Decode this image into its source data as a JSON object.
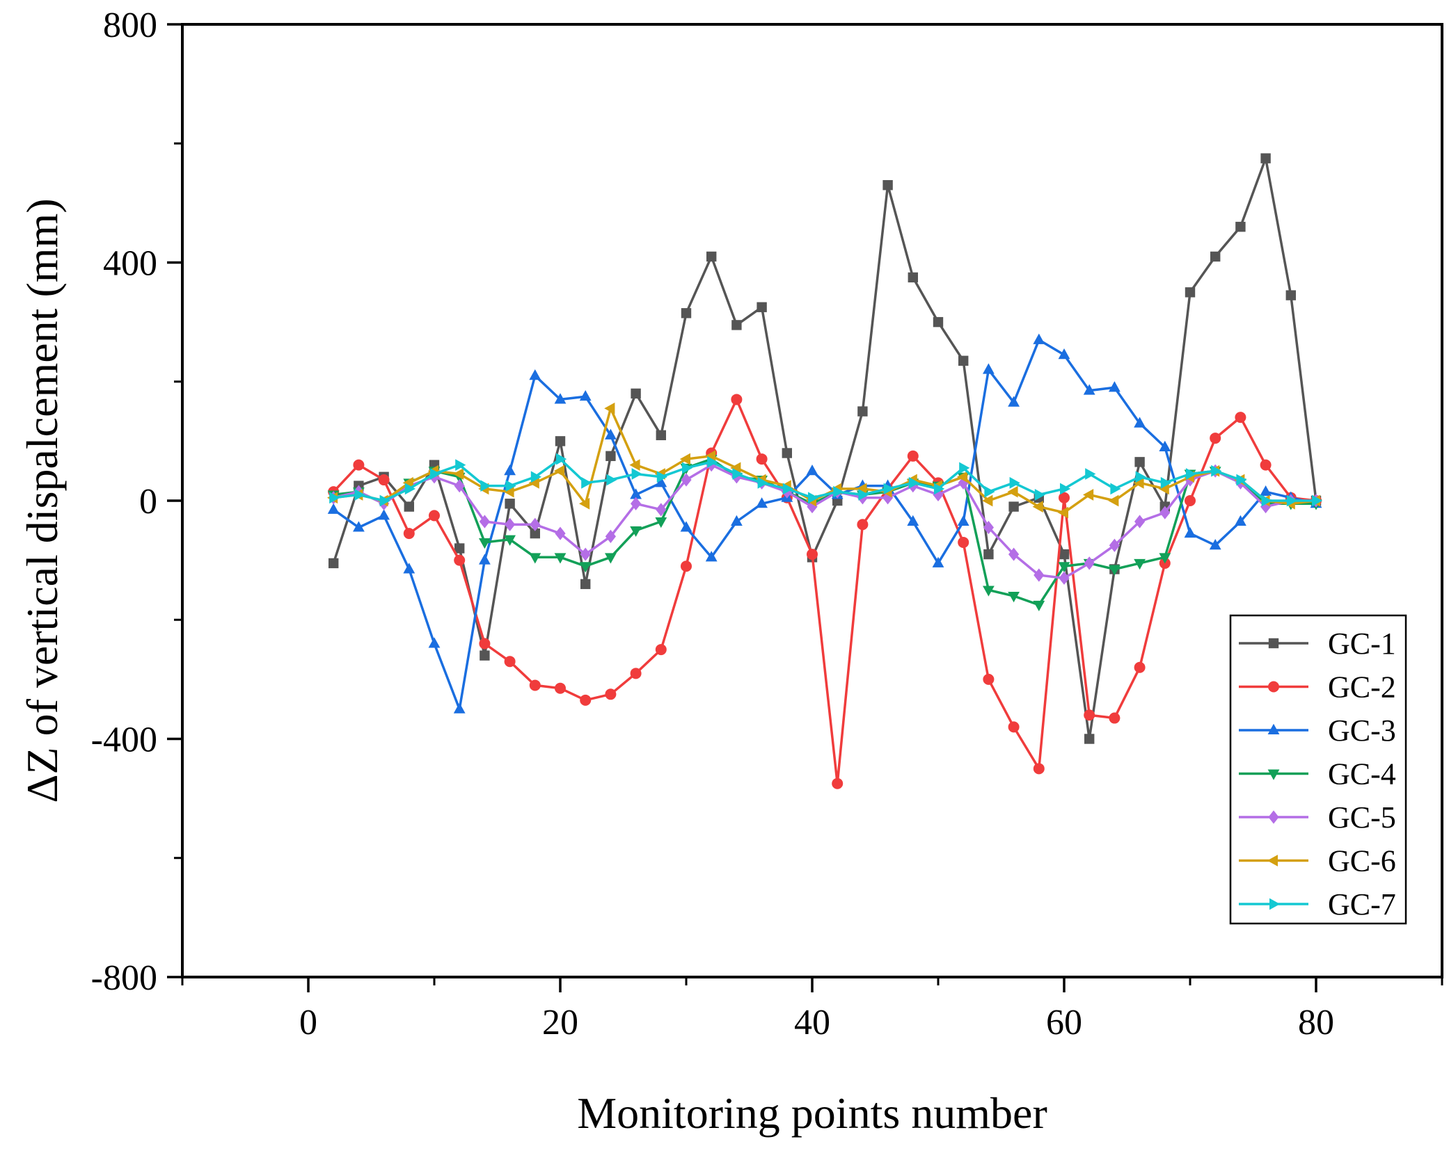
{
  "chart_data": {
    "type": "line",
    "title": "",
    "xlabel": "Monitoring points number",
    "ylabel": "ΔZ of vertical dispalcement (mm)",
    "xlim": [
      -10,
      90
    ],
    "ylim": [
      -800,
      800
    ],
    "xticks": [
      0,
      20,
      40,
      60,
      80
    ],
    "xtick_labels": [
      "0",
      "20",
      "40",
      "60",
      "80"
    ],
    "yticks": [
      -800,
      -400,
      0,
      400,
      800
    ],
    "ytick_labels": [
      "-800",
      "-400",
      "0",
      "400",
      "800"
    ],
    "legend_position": "bottom-right",
    "grid": false,
    "x": [
      2,
      4,
      6,
      8,
      10,
      12,
      14,
      16,
      18,
      20,
      22,
      24,
      26,
      28,
      30,
      32,
      34,
      36,
      38,
      40,
      42,
      44,
      46,
      48,
      50,
      52,
      54,
      56,
      58,
      60,
      62,
      64,
      66,
      68,
      70,
      72,
      74,
      76,
      78,
      80
    ],
    "series": [
      {
        "name": "GC-1",
        "color": "#555555",
        "marker": "square",
        "values": [
          -105,
          25,
          40,
          -10,
          60,
          -80,
          -260,
          -5,
          -55,
          100,
          -140,
          75,
          180,
          110,
          315,
          410,
          295,
          325,
          80,
          -95,
          0,
          150,
          530,
          375,
          300,
          235,
          -90,
          -10,
          5,
          -90,
          -400,
          -115,
          65,
          -10,
          350,
          410,
          460,
          575,
          345,
          0
        ]
      },
      {
        "name": "GC-2",
        "color": "#f03c3c",
        "marker": "circle",
        "values": [
          15,
          60,
          35,
          -55,
          -25,
          -100,
          -240,
          -270,
          -310,
          -315,
          -335,
          -325,
          -290,
          -250,
          -110,
          80,
          170,
          70,
          5,
          -90,
          -475,
          -40,
          20,
          75,
          30,
          -70,
          -300,
          -380,
          -450,
          5,
          -360,
          -365,
          -280,
          -105,
          0,
          105,
          140,
          60,
          5,
          0
        ]
      },
      {
        "name": "GC-3",
        "color": "#1a6ee0",
        "marker": "triangle-up",
        "values": [
          -15,
          -45,
          -25,
          -115,
          -240,
          -350,
          -100,
          50,
          210,
          170,
          175,
          110,
          10,
          30,
          -45,
          -95,
          -35,
          -5,
          5,
          50,
          10,
          25,
          25,
          -35,
          -105,
          -35,
          220,
          165,
          270,
          245,
          185,
          190,
          130,
          90,
          -55,
          -75,
          -35,
          15,
          5,
          -5
        ]
      },
      {
        "name": "GC-4",
        "color": "#12a058",
        "marker": "triangle-down",
        "values": [
          10,
          15,
          -5,
          30,
          50,
          40,
          -70,
          -65,
          -95,
          -95,
          -110,
          -95,
          -50,
          -35,
          55,
          70,
          40,
          35,
          15,
          -5,
          15,
          10,
          15,
          30,
          25,
          40,
          -150,
          -160,
          -175,
          -110,
          -105,
          -115,
          -105,
          -95,
          45,
          50,
          30,
          -5,
          -5,
          -5
        ]
      },
      {
        "name": "GC-5",
        "color": "#b46ee6",
        "marker": "diamond",
        "values": [
          5,
          15,
          -5,
          25,
          40,
          25,
          -35,
          -40,
          -40,
          -55,
          -90,
          -60,
          -5,
          -15,
          35,
          60,
          40,
          30,
          15,
          -10,
          15,
          5,
          5,
          25,
          10,
          30,
          -45,
          -90,
          -125,
          -130,
          -105,
          -75,
          -35,
          -20,
          35,
          50,
          30,
          -10,
          0,
          0
        ]
      },
      {
        "name": "GC-6",
        "color": "#d4a010",
        "marker": "triangle-left",
        "values": [
          5,
          10,
          0,
          30,
          50,
          45,
          20,
          15,
          30,
          50,
          -5,
          155,
          60,
          45,
          70,
          75,
          55,
          35,
          25,
          0,
          20,
          20,
          15,
          35,
          25,
          40,
          0,
          15,
          -10,
          -20,
          10,
          0,
          30,
          20,
          40,
          50,
          35,
          0,
          -5,
          0
        ]
      },
      {
        "name": "GC-7",
        "color": "#14c8d2",
        "marker": "triangle-right",
        "values": [
          5,
          10,
          0,
          20,
          45,
          60,
          25,
          25,
          40,
          70,
          30,
          35,
          45,
          40,
          55,
          65,
          45,
          30,
          20,
          5,
          15,
          10,
          20,
          30,
          20,
          55,
          15,
          30,
          10,
          20,
          45,
          20,
          40,
          30,
          45,
          50,
          35,
          0,
          0,
          0
        ]
      }
    ]
  }
}
